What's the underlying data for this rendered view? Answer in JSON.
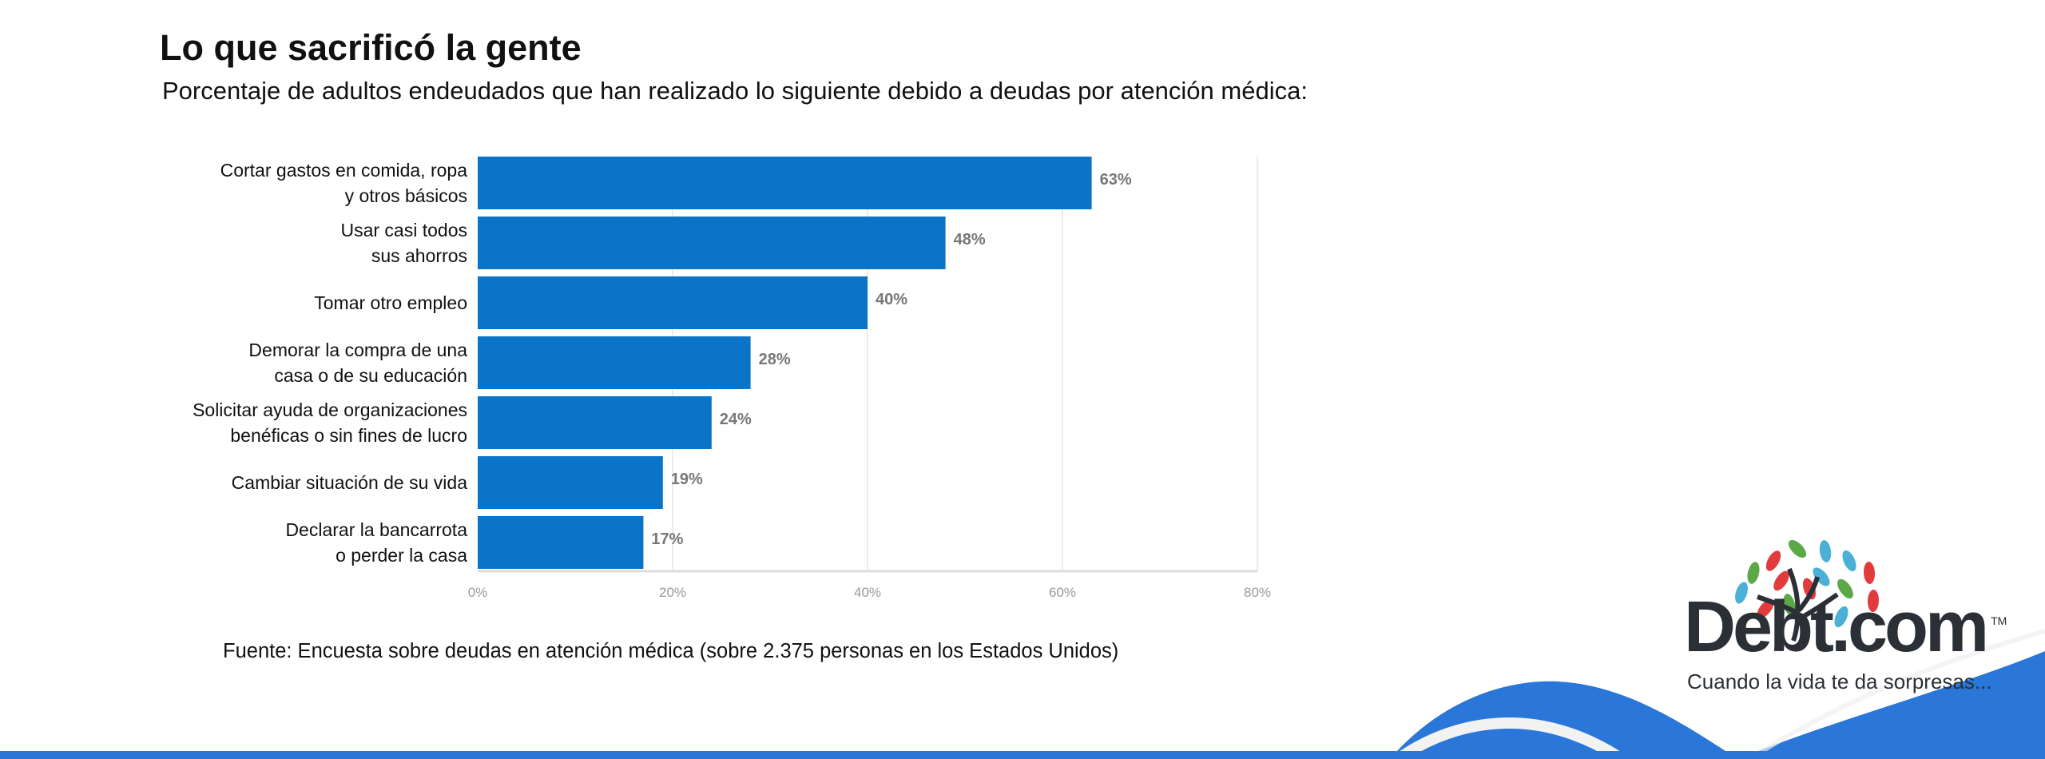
{
  "header": {
    "title": "Lo que sacrificó la gente",
    "subtitle": "Porcentaje de adultos endeudados que han realizado lo siguiente debido a deudas por atención médica:"
  },
  "chart_data": {
    "type": "bar",
    "orientation": "horizontal",
    "categories": [
      "Cortar gastos en comida, ropa\ny otros básicos",
      "Usar casi todos\nsus ahorros",
      "Tomar otro empleo",
      "Demorar la compra de una\ncasa o de su educación",
      "Solicitar ayuda de organizaciones\nbenéficas o sin fines de lucro",
      "Cambiar situación de su vida",
      "Declarar la bancarrota\no perder la casa"
    ],
    "values": [
      63,
      48,
      40,
      28,
      24,
      19,
      17
    ],
    "data_labels": [
      "63%",
      "48%",
      "40%",
      "28%",
      "24%",
      "19%",
      "17%"
    ],
    "xlim": [
      0,
      80
    ],
    "xticks": [
      0,
      20,
      40,
      60,
      80
    ],
    "xtick_labels": [
      "0%",
      "20%",
      "40%",
      "60%",
      "80%"
    ],
    "grid": true,
    "bar_color": "#0a74c9",
    "label_color": "#777777"
  },
  "footer": {
    "source": "Fuente: Encuesta sobre deudas en atención médica (sobre 2.375 personas en los Estados Unidos)"
  },
  "brand": {
    "logo_text": "Debt.com",
    "trademark": "TM",
    "tagline": "Cuando la vida te da sorpresas...",
    "accent_color": "#2a76d9"
  }
}
